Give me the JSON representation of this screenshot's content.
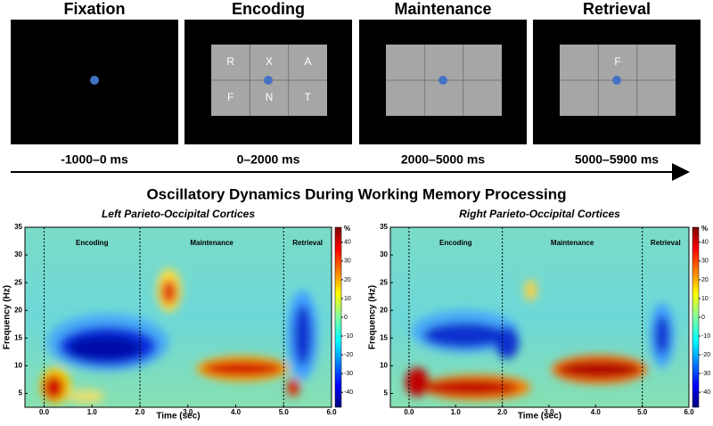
{
  "task": {
    "panels": [
      {
        "title": "Fixation",
        "time": "-1000–0 ms"
      },
      {
        "title": "Encoding",
        "time": "0–2000 ms",
        "cells": [
          "R",
          "X",
          "A",
          "F",
          "N",
          "T"
        ]
      },
      {
        "title": "Maintenance",
        "time": "2000–5000 ms",
        "cells": [
          null,
          null,
          null,
          null,
          null,
          null
        ]
      },
      {
        "title": "Retrieval",
        "time": "5000–5900 ms",
        "cells": [
          null,
          "F",
          null,
          null,
          null,
          null
        ]
      }
    ]
  },
  "chart_data": [
    {
      "type": "heatmap",
      "title": "Oscillatory Dynamics During Working Memory Processing",
      "subtitle": "Left Parieto-Occipital Cortices",
      "x_label": "Time (sec)",
      "y_label": "Frequency (Hz)",
      "xlim": [
        -0.4,
        6.0
      ],
      "xticks": [
        {
          "value": 0,
          "label": "0.0"
        },
        {
          "value": 1,
          "label": "1.0"
        },
        {
          "value": 2,
          "label": "2.0"
        },
        {
          "value": 3,
          "label": "3.0"
        },
        {
          "value": 4,
          "label": "4.0"
        },
        {
          "value": 5,
          "label": "5.0"
        },
        {
          "value": 6,
          "label": "6.0"
        }
      ],
      "ylim": [
        2.5,
        35
      ],
      "yticks": [
        5,
        10,
        15,
        20,
        25,
        30,
        35
      ],
      "phase_boundaries": [
        0,
        2,
        5
      ],
      "phases": [
        "Encoding",
        "Maintenance",
        "Retrieval"
      ],
      "colorbar_label": "%",
      "clim": [
        -48,
        48
      ],
      "cticks": [
        40,
        30,
        20,
        10,
        0,
        -10,
        -20,
        -30,
        -40
      ]
    },
    {
      "type": "heatmap",
      "subtitle": "Right Parieto-Occipital Cortices",
      "x_label": "Time (sec)",
      "y_label": "Frequency (Hz)",
      "xlim": [
        -0.4,
        6.0
      ],
      "xticks": [
        {
          "value": 0,
          "label": "0.0"
        },
        {
          "value": 1,
          "label": "1.0"
        },
        {
          "value": 2,
          "label": "2.0"
        },
        {
          "value": 3,
          "label": "3.0"
        },
        {
          "value": 4,
          "label": "4.0"
        },
        {
          "value": 5,
          "label": "5.0"
        },
        {
          "value": 6,
          "label": "6.0"
        }
      ],
      "ylim": [
        2.5,
        35
      ],
      "yticks": [
        5,
        10,
        15,
        20,
        25,
        30,
        35
      ],
      "phase_boundaries": [
        0,
        2,
        5
      ],
      "phases": [
        "Encoding",
        "Maintenance",
        "Retrieval"
      ],
      "colorbar_label": "%",
      "clim": [
        -48,
        48
      ],
      "cticks": [
        40,
        30,
        20,
        10,
        0,
        -10,
        -20,
        -30,
        -40
      ]
    }
  ]
}
